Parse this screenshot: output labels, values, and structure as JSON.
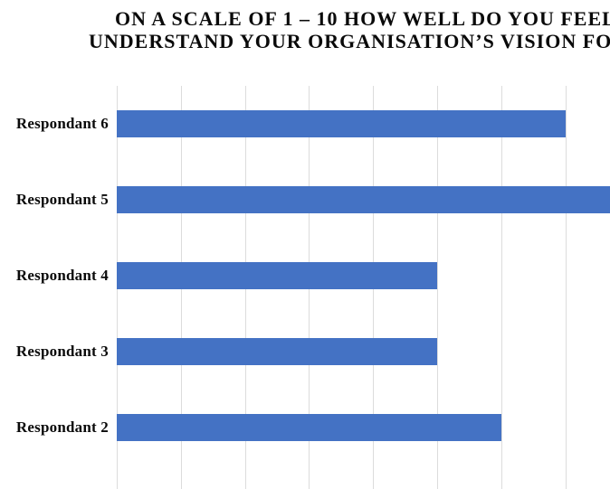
{
  "title": {
    "line1": "ON A SCALE OF 1 – 10 HOW WELL DO YOU FEEL",
    "line2": "UNDERSTAND YOUR ORGANISATION’S VISION FO"
  },
  "chart_data": {
    "type": "bar",
    "orientation": "horizontal",
    "title": "ON A SCALE OF 1 – 10 HOW WELL DO YOU FEEL UNDERSTAND YOUR ORGANISATION’S VISION FO",
    "categories": [
      "Respondant 6",
      "Respondant 5",
      "Respondant 4",
      "Respondant 3",
      "Respondant 2"
    ],
    "values": [
      7,
      8,
      5,
      5,
      6
    ],
    "value_note": "Respondant 5 bar runs past the cropped right edge; its value is estimated from the 1-unit gridline spacing",
    "xlabel": "",
    "ylabel": "",
    "xlim": [
      0,
      8
    ],
    "gridline_interval": 1,
    "grid": "vertical gridlines on, horizontal off",
    "legend": "none",
    "colors": {
      "bar": "#4472C4",
      "gridline": "#DCDCDC",
      "text": "#0A0A0A",
      "background": "#FFFFFF"
    }
  }
}
